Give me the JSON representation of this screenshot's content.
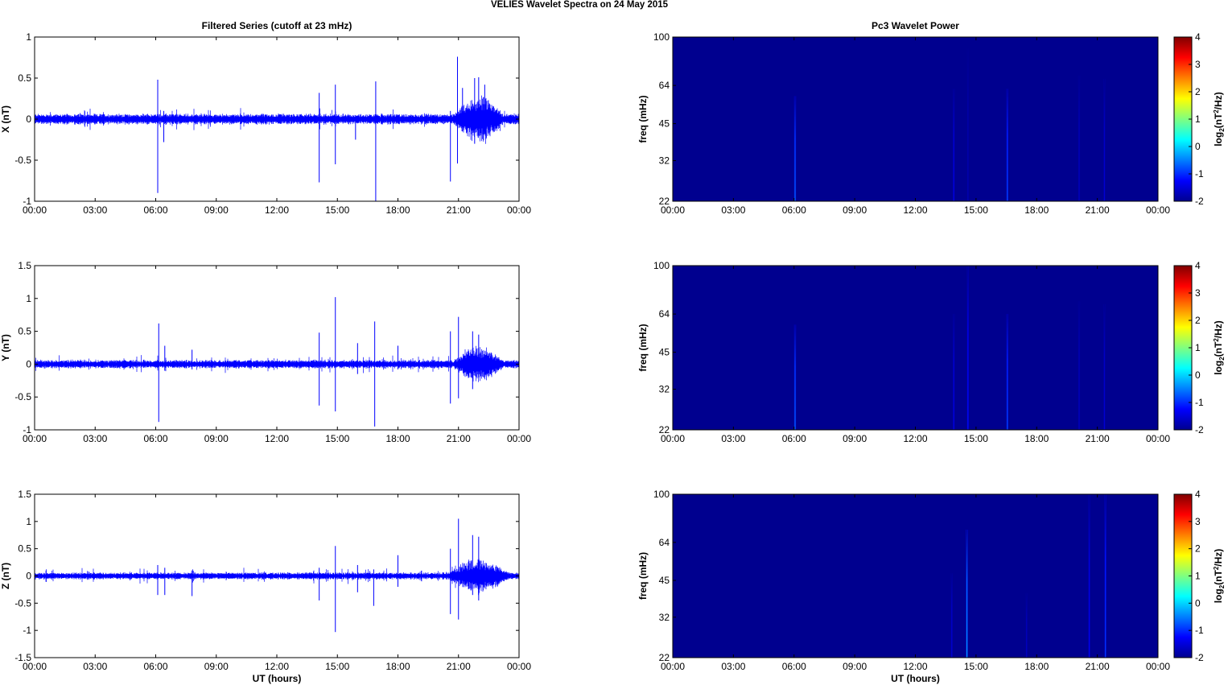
{
  "figure": {
    "title": "VELIES Wavelet Spectra on 24 May       2015"
  },
  "time_axis": {
    "tick_labels": [
      "00:00",
      "03:00",
      "06:00",
      "09:00",
      "12:00",
      "15:00",
      "18:00",
      "21:00",
      "00:00"
    ],
    "xlabel": "UT (hours)"
  },
  "colors": {
    "trace": "#0000ff",
    "spectrogram_background": "#00008f",
    "colormap": "jet"
  },
  "chart_data": [
    {
      "type": "line",
      "title": "Filtered Series (cutoff at 23 mHz)",
      "ylabel": "X (nT)",
      "xlim_hours": [
        0,
        24
      ],
      "ylim": [
        -1,
        1
      ],
      "yticks": [
        -1,
        -0.5,
        0,
        0.5,
        1
      ],
      "ytick_labels": [
        "-1",
        "-0.5",
        "0",
        "0.5",
        "1"
      ],
      "noise_amplitude": 0.05,
      "activity_window_hours": [
        20.8,
        23.2
      ],
      "activity_amplitude": 0.28,
      "spikes": [
        {
          "t": 6.1,
          "max": 0.48,
          "min": -0.9
        },
        {
          "t": 6.4,
          "max": 0.1,
          "min": -0.28
        },
        {
          "t": 14.1,
          "max": 0.32,
          "min": -0.77
        },
        {
          "t": 14.9,
          "max": 0.42,
          "min": -0.55
        },
        {
          "t": 15.9,
          "max": 0.05,
          "min": -0.25
        },
        {
          "t": 16.9,
          "max": 0.46,
          "min": -1.0
        },
        {
          "t": 20.6,
          "max": 0.1,
          "min": -0.76
        },
        {
          "t": 20.95,
          "max": 0.76,
          "min": -0.54
        },
        {
          "t": 21.2,
          "max": 0.38,
          "min": -0.15
        },
        {
          "t": 21.8,
          "max": 0.5,
          "min": -0.3
        },
        {
          "t": 22.0,
          "max": 0.51,
          "min": -0.2
        },
        {
          "t": 22.3,
          "max": 0.42,
          "min": -0.18
        }
      ]
    },
    {
      "type": "line",
      "ylabel": "Y (nT)",
      "xlim_hours": [
        0,
        24
      ],
      "ylim": [
        -1,
        1.5
      ],
      "yticks": [
        -1,
        -0.5,
        0,
        0.5,
        1,
        1.5
      ],
      "ytick_labels": [
        "-1",
        "-0.5",
        "0",
        "0.5",
        "1",
        "1.5"
      ],
      "noise_amplitude": 0.05,
      "activity_window_hours": [
        20.8,
        23.2
      ],
      "activity_amplitude": 0.25,
      "spikes": [
        {
          "t": 6.15,
          "max": 0.62,
          "min": -0.88
        },
        {
          "t": 6.45,
          "max": 0.28,
          "min": -0.1
        },
        {
          "t": 7.8,
          "max": 0.22,
          "min": -0.08
        },
        {
          "t": 14.1,
          "max": 0.48,
          "min": -0.63
        },
        {
          "t": 14.9,
          "max": 1.02,
          "min": -0.72
        },
        {
          "t": 16.0,
          "max": 0.32,
          "min": -0.15
        },
        {
          "t": 16.85,
          "max": 0.65,
          "min": -0.95
        },
        {
          "t": 18.0,
          "max": 0.28,
          "min": -0.08
        },
        {
          "t": 20.6,
          "max": 0.5,
          "min": -0.6
        },
        {
          "t": 21.0,
          "max": 0.72,
          "min": -0.52
        },
        {
          "t": 21.7,
          "max": 0.5,
          "min": -0.38
        },
        {
          "t": 22.0,
          "max": 0.45,
          "min": -0.2
        }
      ]
    },
    {
      "type": "line",
      "ylabel": "Z (nT)",
      "xlabel": "UT (hours)",
      "xlim_hours": [
        0,
        24
      ],
      "ylim": [
        -1.5,
        1.5
      ],
      "yticks": [
        -1.5,
        -1,
        -0.5,
        0,
        0.5,
        1,
        1.5
      ],
      "ytick_labels": [
        "-1.5",
        "-1",
        "-0.5",
        "0",
        "0.5",
        "1",
        "1.5"
      ],
      "noise_amplitude": 0.05,
      "activity_window_hours": [
        20.5,
        23.5
      ],
      "activity_amplitude": 0.3,
      "spikes": [
        {
          "t": 6.1,
          "max": 0.2,
          "min": -0.35
        },
        {
          "t": 6.45,
          "max": 0.15,
          "min": -0.35
        },
        {
          "t": 7.8,
          "max": 0.1,
          "min": -0.37
        },
        {
          "t": 14.1,
          "max": 0.15,
          "min": -0.45
        },
        {
          "t": 14.9,
          "max": 0.55,
          "min": -1.03
        },
        {
          "t": 16.0,
          "max": 0.2,
          "min": -0.3
        },
        {
          "t": 16.8,
          "max": 0.12,
          "min": -0.55
        },
        {
          "t": 18.0,
          "max": 0.38,
          "min": -0.2
        },
        {
          "t": 20.6,
          "max": 0.5,
          "min": -0.7
        },
        {
          "t": 21.0,
          "max": 1.05,
          "min": -0.8
        },
        {
          "t": 21.7,
          "max": 0.75,
          "min": -0.35
        },
        {
          "t": 22.0,
          "max": 0.72,
          "min": -0.45
        }
      ]
    },
    {
      "type": "heatmap",
      "title": "Pc3 Wavelet Power",
      "ylabel": "freq (mHz)",
      "yscale": "log",
      "ylim": [
        22,
        100
      ],
      "yticks": [
        22,
        32,
        45,
        64,
        100
      ],
      "ytick_labels": [
        "22",
        "32",
        "45",
        "64",
        "100"
      ],
      "xlim_hours": [
        0,
        24
      ],
      "colorbar": {
        "clim": [
          -2,
          4
        ],
        "ticks": [
          "-2",
          "-1",
          "0",
          "1",
          "2",
          "3",
          "4"
        ],
        "label_base": "log",
        "label_sub": "2",
        "label_rest": "(nT",
        "label_sup": "2",
        "label_end": "/Hz)"
      },
      "streaks": [
        {
          "t": 6.05,
          "fmax": 58,
          "value": -0.6
        },
        {
          "t": 13.9,
          "fmax": 62,
          "value": -1.4
        },
        {
          "t": 14.6,
          "fmax": 90,
          "value": -1.7
        },
        {
          "t": 16.55,
          "fmax": 62,
          "value": -0.8
        },
        {
          "t": 20.1,
          "fmax": 70,
          "value": -1.6
        },
        {
          "t": 21.35,
          "fmax": 68,
          "value": -1.5
        }
      ]
    },
    {
      "type": "heatmap",
      "ylabel": "freq (mHz)",
      "yscale": "log",
      "ylim": [
        22,
        100
      ],
      "yticks": [
        22,
        32,
        45,
        64,
        100
      ],
      "ytick_labels": [
        "22",
        "32",
        "45",
        "64",
        "100"
      ],
      "xlim_hours": [
        0,
        24
      ],
      "colorbar": {
        "clim": [
          -2,
          4
        ],
        "ticks": [
          "-2",
          "-1",
          "0",
          "1",
          "2",
          "3",
          "4"
        ],
        "label_base": "log",
        "label_sub": "2",
        "label_rest": "(nT",
        "label_sup": "2",
        "label_end": "/Hz)"
      },
      "streaks": [
        {
          "t": 6.05,
          "fmax": 58,
          "value": -0.6
        },
        {
          "t": 13.9,
          "fmax": 64,
          "value": -1.4
        },
        {
          "t": 14.6,
          "fmax": 100,
          "value": -1.2
        },
        {
          "t": 16.55,
          "fmax": 64,
          "value": -0.8
        },
        {
          "t": 20.1,
          "fmax": 72,
          "value": -1.6
        },
        {
          "t": 21.35,
          "fmax": 70,
          "value": -1.5
        }
      ]
    },
    {
      "type": "heatmap",
      "ylabel": "freq (mHz)",
      "xlabel": "UT (hours)",
      "yscale": "log",
      "ylim": [
        22,
        100
      ],
      "yticks": [
        22,
        32,
        45,
        64,
        100
      ],
      "ytick_labels": [
        "22",
        "32",
        "45",
        "64",
        "100"
      ],
      "xlim_hours": [
        0,
        24
      ],
      "colorbar": {
        "clim": [
          -2,
          4
        ],
        "ticks": [
          "-2",
          "-1",
          "0",
          "1",
          "2",
          "3",
          "4"
        ],
        "label_base": "log",
        "label_sub": "2",
        "label_rest": "(nT",
        "label_sup": "2",
        "label_end": "/Hz)"
      },
      "streaks": [
        {
          "t": 13.8,
          "fmax": 48,
          "value": -1.5
        },
        {
          "t": 14.55,
          "fmax": 72,
          "value": -0.3
        },
        {
          "t": 17.5,
          "fmax": 40,
          "value": -1.6
        },
        {
          "t": 20.6,
          "fmax": 100,
          "value": -1.3
        },
        {
          "t": 21.4,
          "fmax": 100,
          "value": -0.9
        }
      ]
    }
  ]
}
